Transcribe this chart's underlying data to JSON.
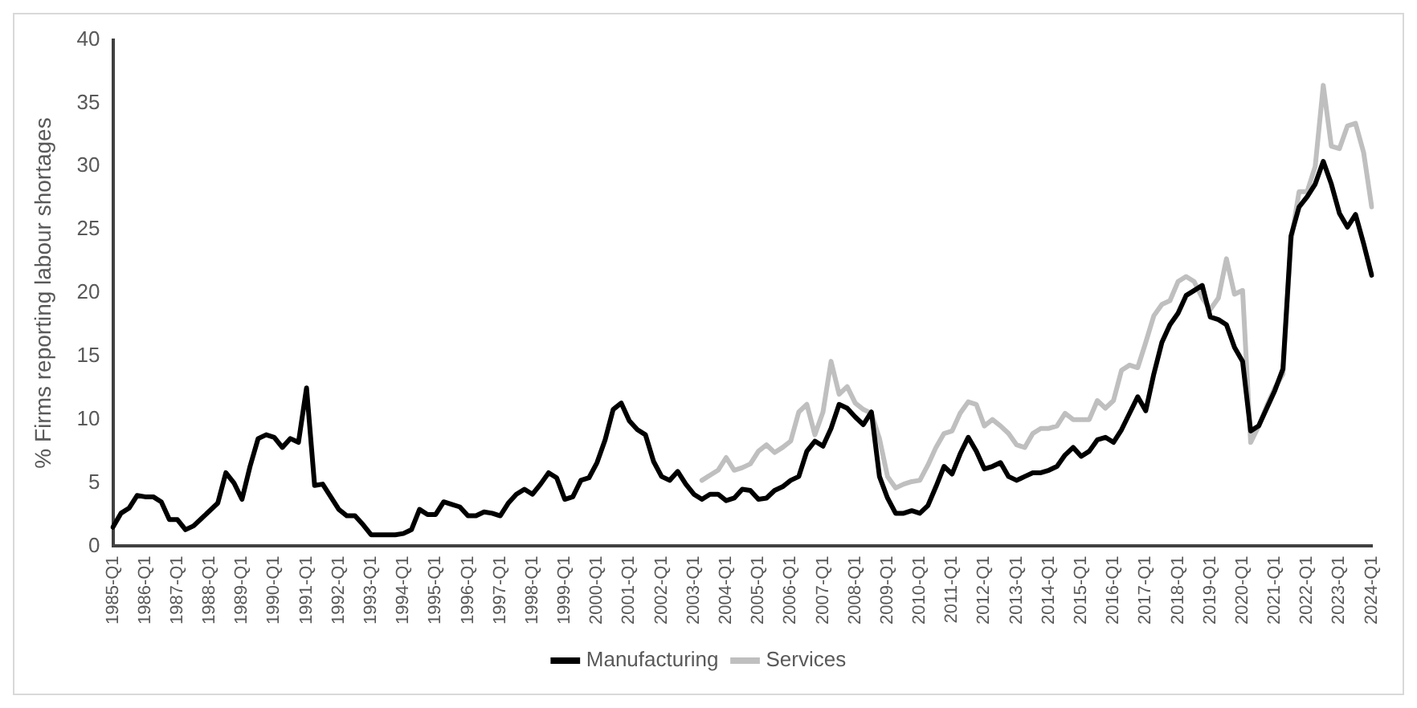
{
  "chart_data": {
    "type": "line",
    "ylabel": "% Firms reporting labour shortages",
    "categories": [
      "1985-Q1",
      null,
      null,
      null,
      "1986-Q1",
      null,
      null,
      null,
      "1987-Q1",
      null,
      null,
      null,
      "1988-Q1",
      null,
      null,
      null,
      "1989-Q1",
      null,
      null,
      null,
      "1990-Q1",
      null,
      null,
      null,
      "1991-Q1",
      null,
      null,
      null,
      "1992-Q1",
      null,
      null,
      null,
      "1993-Q1",
      null,
      null,
      null,
      "1994-Q1",
      null,
      null,
      null,
      "1995-Q1",
      null,
      null,
      null,
      "1996-Q1",
      null,
      null,
      null,
      "1997-Q1",
      null,
      null,
      null,
      "1998-Q1",
      null,
      null,
      null,
      "1999-Q1",
      null,
      null,
      null,
      "2000-Q1",
      null,
      null,
      null,
      "2001-Q1",
      null,
      null,
      null,
      "2002-Q1",
      null,
      null,
      null,
      "2003-Q1",
      null,
      null,
      null,
      "2004-Q1",
      null,
      null,
      null,
      "2005-Q1",
      null,
      null,
      null,
      "2006-Q1",
      null,
      null,
      null,
      "2007-Q1",
      null,
      null,
      null,
      "2008-Q1",
      null,
      null,
      null,
      "2009-Q1",
      null,
      null,
      null,
      "2010-Q1",
      null,
      null,
      null,
      "2011-Q1",
      null,
      null,
      null,
      "2012-Q1",
      null,
      null,
      null,
      "2013-Q1",
      null,
      null,
      null,
      "2014-Q1",
      null,
      null,
      null,
      "2015-Q1",
      null,
      null,
      null,
      "2016-Q1",
      null,
      null,
      null,
      "2017-Q1",
      null,
      null,
      null,
      "2018-Q1",
      null,
      null,
      null,
      "2019-Q1",
      null,
      null,
      null,
      "2020-Q1",
      null,
      null,
      null,
      "2021-Q1",
      null,
      null,
      null,
      "2022-Q1",
      null,
      null,
      null,
      "2023-Q1",
      null,
      null,
      null,
      "2024-Q1"
    ],
    "series": [
      {
        "name": "Manufacturing",
        "color": "#000000",
        "values": [
          1.5,
          2.6,
          3.0,
          4.0,
          3.9,
          3.9,
          3.5,
          2.1,
          2.1,
          1.3,
          1.6,
          2.2,
          2.8,
          3.4,
          5.8,
          5.0,
          3.7,
          6.3,
          8.5,
          8.8,
          8.6,
          7.8,
          8.5,
          8.2,
          12.5,
          4.8,
          4.9,
          3.9,
          2.9,
          2.4,
          2.4,
          1.7,
          0.9,
          0.9,
          0.9,
          0.9,
          1.0,
          1.3,
          2.9,
          2.5,
          2.5,
          3.5,
          3.3,
          3.1,
          2.4,
          2.4,
          2.7,
          2.6,
          2.4,
          3.4,
          4.1,
          4.5,
          4.1,
          4.9,
          5.8,
          5.4,
          3.7,
          3.9,
          5.2,
          5.4,
          6.6,
          8.4,
          10.8,
          11.3,
          9.9,
          9.2,
          8.8,
          6.7,
          5.5,
          5.2,
          5.9,
          4.9,
          4.1,
          3.7,
          4.1,
          4.1,
          3.6,
          3.8,
          4.5,
          4.4,
          3.7,
          3.8,
          4.4,
          4.7,
          5.2,
          5.5,
          7.5,
          8.3,
          7.9,
          9.3,
          11.2,
          10.9,
          10.2,
          9.6,
          10.6,
          5.5,
          3.8,
          2.6,
          2.6,
          2.8,
          2.6,
          3.2,
          4.7,
          6.3,
          5.7,
          7.3,
          8.6,
          7.5,
          6.1,
          6.3,
          6.6,
          5.5,
          5.2,
          5.5,
          5.8,
          5.8,
          6.0,
          6.3,
          7.2,
          7.8,
          7.1,
          7.5,
          8.4,
          8.6,
          8.2,
          9.2,
          10.5,
          11.8,
          10.7,
          13.6,
          16.1,
          17.5,
          18.4,
          19.8,
          20.2,
          20.6,
          18.1,
          17.9,
          17.5,
          15.7,
          14.6,
          9.1,
          9.5,
          10.9,
          12.3,
          14.0,
          24.5,
          26.8,
          27.6,
          28.6,
          30.4,
          28.6,
          26.3,
          25.2,
          26.2,
          23.9,
          21.4
        ]
      },
      {
        "name": "Services",
        "color": "#bfbfbf",
        "values": [
          null,
          null,
          null,
          null,
          null,
          null,
          null,
          null,
          null,
          null,
          null,
          null,
          null,
          null,
          null,
          null,
          null,
          null,
          null,
          null,
          null,
          null,
          null,
          null,
          null,
          null,
          null,
          null,
          null,
          null,
          null,
          null,
          null,
          null,
          null,
          null,
          null,
          null,
          null,
          null,
          null,
          null,
          null,
          null,
          null,
          null,
          null,
          null,
          null,
          null,
          null,
          null,
          null,
          null,
          null,
          null,
          null,
          null,
          null,
          null,
          null,
          null,
          null,
          null,
          null,
          null,
          null,
          null,
          null,
          null,
          null,
          null,
          null,
          5.2,
          5.6,
          6.0,
          7.0,
          6.0,
          6.2,
          6.5,
          7.5,
          8.0,
          7.4,
          7.8,
          8.3,
          10.6,
          11.2,
          8.8,
          10.6,
          14.6,
          12.0,
          12.6,
          11.3,
          10.8,
          10.5,
          8.5,
          5.5,
          4.6,
          4.9,
          5.1,
          5.2,
          6.4,
          7.8,
          8.9,
          9.1,
          10.5,
          11.4,
          11.2,
          9.5,
          10.0,
          9.5,
          8.9,
          8.0,
          7.8,
          8.9,
          9.3,
          9.3,
          9.5,
          10.5,
          10.0,
          10.0,
          10.0,
          11.5,
          10.9,
          11.5,
          13.9,
          14.3,
          14.1,
          16.1,
          18.2,
          19.1,
          19.4,
          20.9,
          21.3,
          20.9,
          19.6,
          18.7,
          19.6,
          22.7,
          19.9,
          20.2,
          8.2,
          9.5,
          11.1,
          12.5,
          13.6,
          24.1,
          28.0,
          28.0,
          30.0,
          36.4,
          31.6,
          31.4,
          33.2,
          33.4,
          31.1,
          26.8
        ]
      }
    ],
    "ylim": [
      0,
      40
    ],
    "yticks": [
      0,
      5,
      10,
      15,
      20,
      25,
      30,
      35,
      40
    ],
    "legend": "bottom",
    "marker": "none",
    "line_style": "solid"
  }
}
